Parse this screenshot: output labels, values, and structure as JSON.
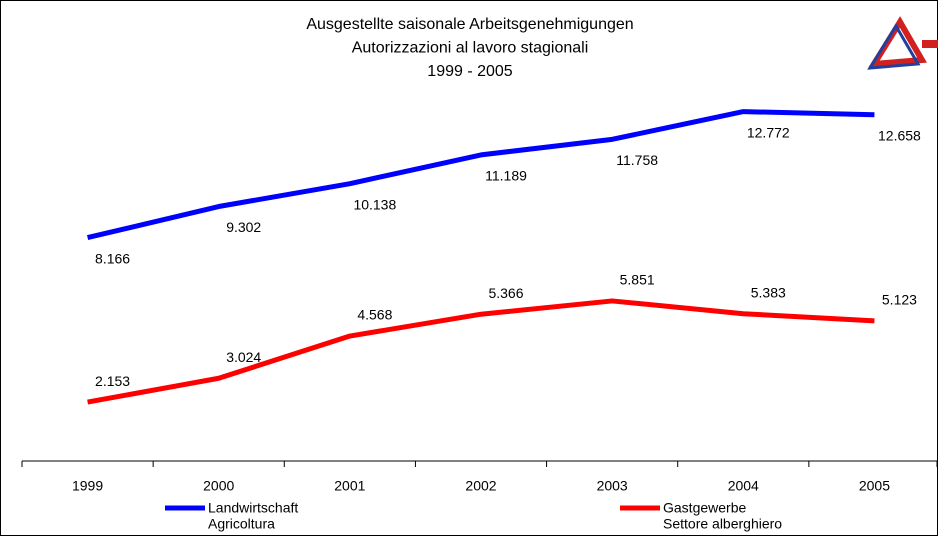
{
  "chart_data": {
    "type": "line",
    "title": [
      "Ausgestellte saisonale Arbeitsgenehmigungen",
      "Autorizzazioni al lavoro stagionali",
      "1999 - 2005"
    ],
    "categories": [
      "1999",
      "2000",
      "2001",
      "2002",
      "2003",
      "2004",
      "2005"
    ],
    "series": [
      {
        "name": [
          "Landwirtschaft",
          "Agricoltura"
        ],
        "color": "#0000ff",
        "values": [
          8166,
          9302,
          10138,
          11189,
          11758,
          12772,
          12658
        ],
        "value_labels": [
          "8.166",
          "9.302",
          "10.138",
          "11.189",
          "11.758",
          "12.772",
          "12.658"
        ]
      },
      {
        "name": [
          "Gastgewerbe",
          "Settore alberghiero"
        ],
        "color": "#ff0000",
        "values": [
          2153,
          3024,
          4568,
          5366,
          5851,
          5383,
          5123
        ],
        "value_labels": [
          "2.153",
          "3.024",
          "4.568",
          "5.366",
          "5.851",
          "5.383",
          "5.123"
        ]
      }
    ],
    "ylim": [
      0,
      14000
    ]
  }
}
